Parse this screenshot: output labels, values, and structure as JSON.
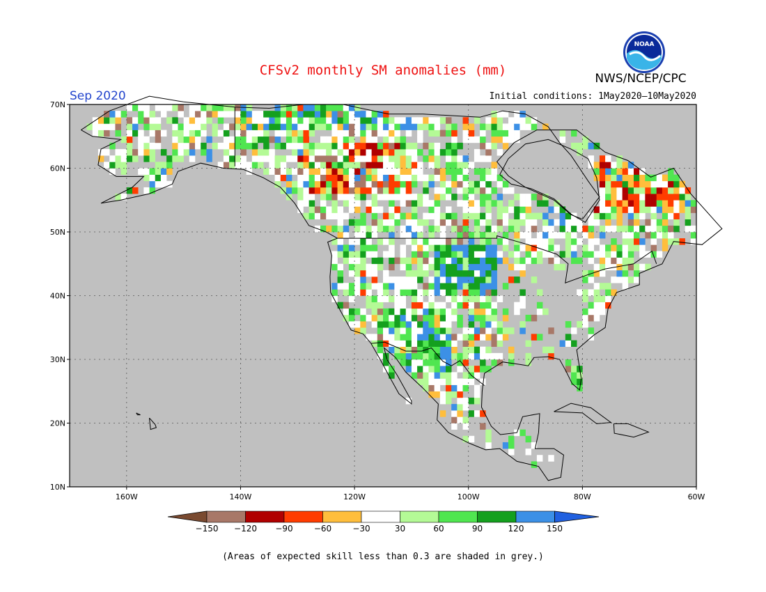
{
  "header": {
    "title": "CFSv2 monthly SM anomalies (mm)",
    "title_color": "#ee1111",
    "month": "Sep 2020",
    "month_color": "#2244cc",
    "initial_conditions": "Initial conditions: 1May2020—10May2020",
    "org": "NWS/NCEP/CPC",
    "logo_text": "NOAA",
    "logo_icon": "noaa-logo-icon"
  },
  "map": {
    "background_color": "#c0c0c0",
    "lat_labels": [
      "70N",
      "60N",
      "50N",
      "40N",
      "30N",
      "20N",
      "10N"
    ],
    "lon_labels": [
      "160W",
      "140W",
      "120W",
      "100W",
      "80W",
      "60W"
    ]
  },
  "legend": {
    "colors": [
      "#7a4a30",
      "#a87868",
      "#b00000",
      "#ff3c00",
      "#ffbe3c",
      "#ffffff",
      "#b4fa96",
      "#50e650",
      "#14a01e",
      "#3c90e6",
      "#2060e0"
    ],
    "labels": [
      "−150",
      "−120",
      "−90",
      "−60",
      "−30",
      "30",
      "60",
      "90",
      "120",
      "150"
    ]
  },
  "footer": {
    "note": "(Areas of expected skill less than 0.3 are shaded in grey.)"
  }
}
